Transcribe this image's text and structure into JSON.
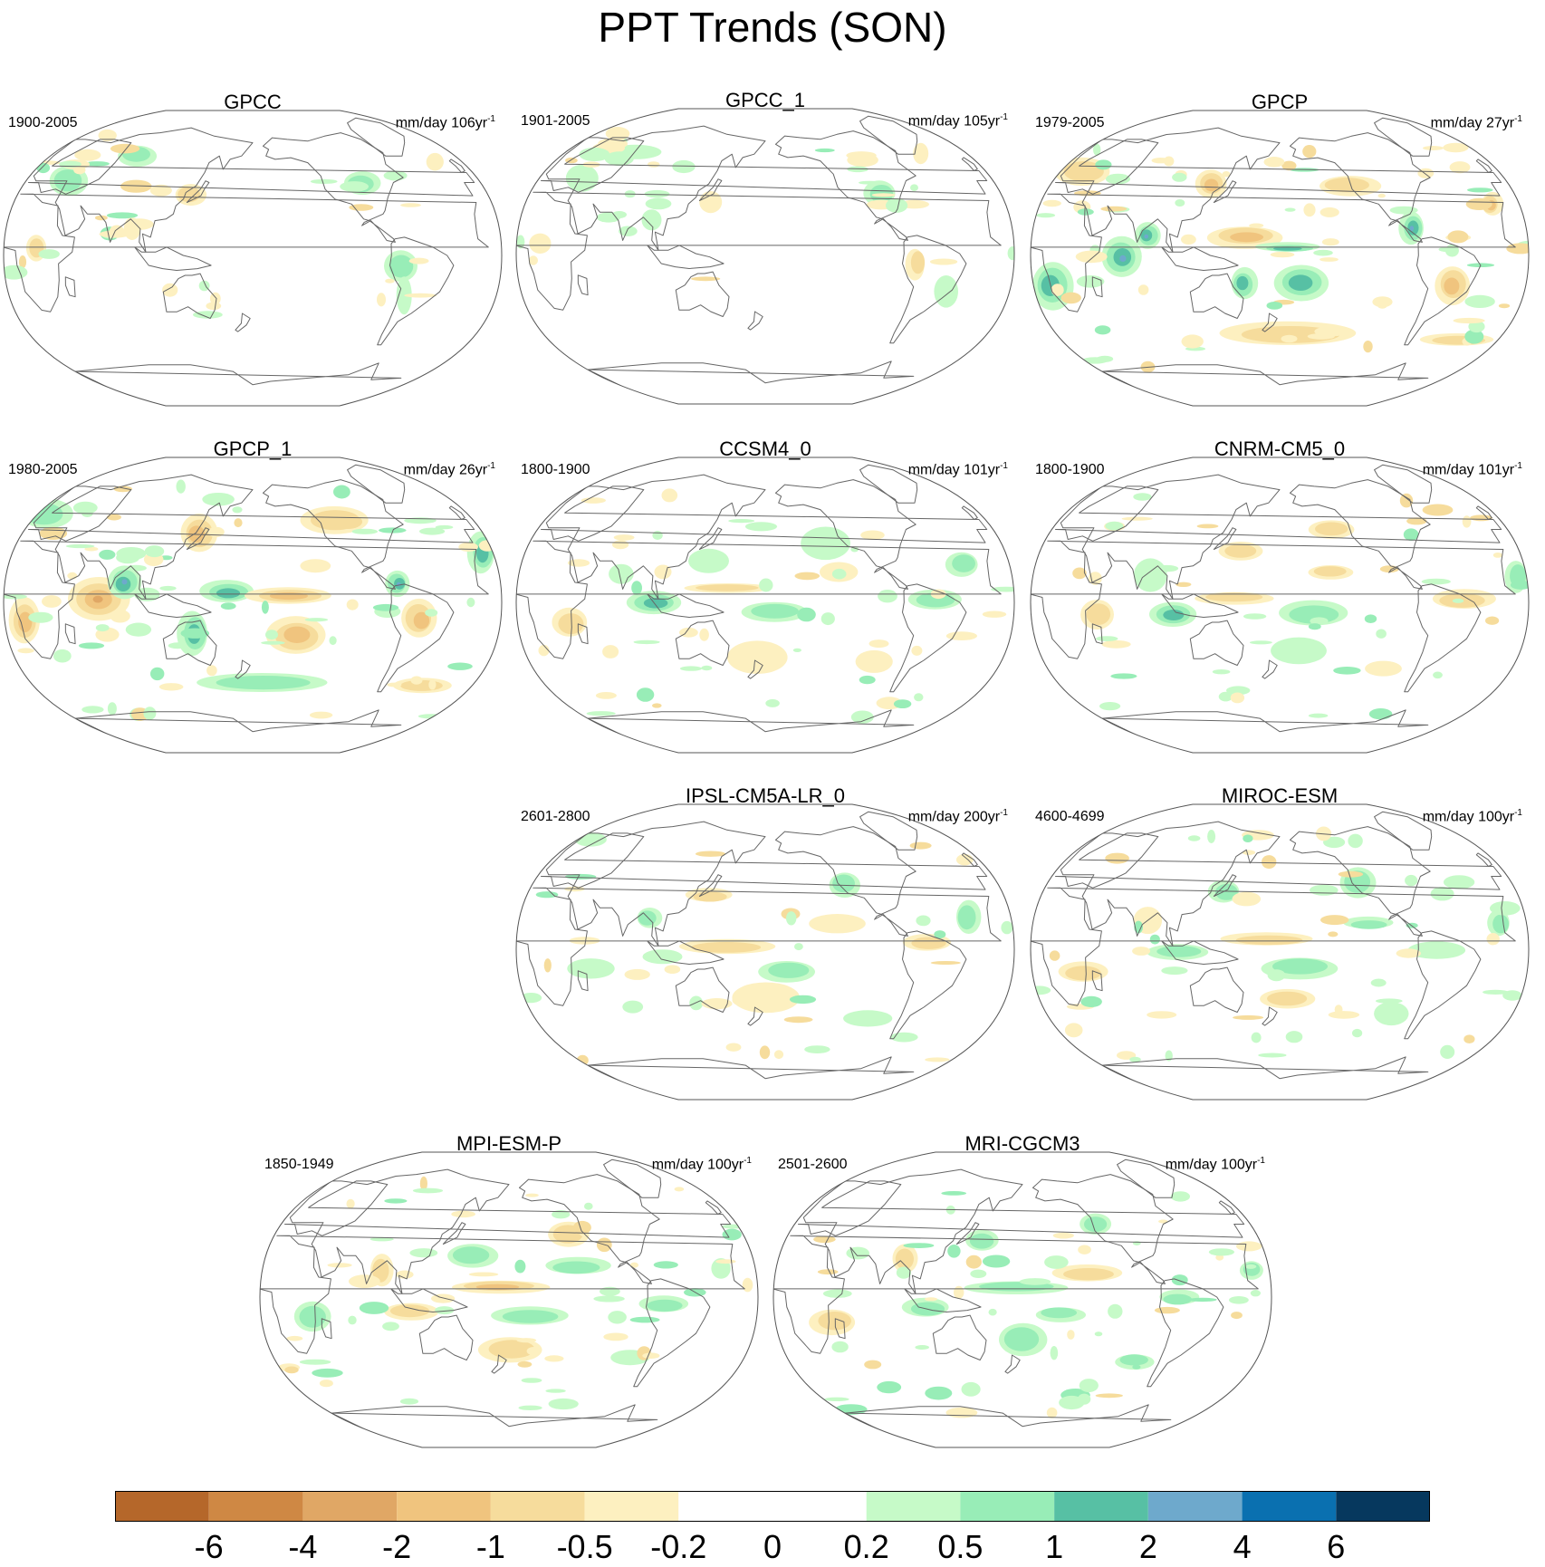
{
  "title": "PPT Trends (SON)",
  "panels": [
    {
      "name": "GPCC",
      "period": "1900-2005",
      "units": "mm/day 106yr",
      "units_sup": "-1",
      "dataset": "obs_gauge",
      "intensity": 0.5
    },
    {
      "name": "GPCC_1",
      "period": "1901-2005",
      "units": "mm/day 105yr",
      "units_sup": "-1",
      "dataset": "obs_gauge",
      "intensity": 0.45
    },
    {
      "name": "GPCP",
      "period": "1979-2005",
      "units": "mm/day 27yr",
      "units_sup": "-1",
      "dataset": "obs_sat",
      "intensity": 1.0
    },
    {
      "name": "GPCP_1",
      "period": "1980-2005",
      "units": "mm/day 26yr",
      "units_sup": "-1",
      "dataset": "obs_sat",
      "intensity": 1.0
    },
    {
      "name": "CCSM4_0",
      "period": "1800-1900",
      "units": "mm/day 101yr",
      "units_sup": "-1",
      "dataset": "model",
      "intensity": 0.6
    },
    {
      "name": "CNRM-CM5_0",
      "period": "1800-1900",
      "units": "mm/day 101yr",
      "units_sup": "-1",
      "dataset": "model",
      "intensity": 0.55
    },
    {
      "name": "IPSL-CM5A-LR_0",
      "period": "2601-2800",
      "units": "mm/day 200yr",
      "units_sup": "-1",
      "dataset": "model",
      "intensity": 0.45
    },
    {
      "name": "MIROC-ESM",
      "period": "4600-4699",
      "units": "mm/day 100yr",
      "units_sup": "-1",
      "dataset": "model",
      "intensity": 0.7
    },
    {
      "name": "MPI-ESM-P",
      "period": "1850-1949",
      "units": "mm/day 100yr",
      "units_sup": "-1",
      "dataset": "model",
      "intensity": 0.75
    },
    {
      "name": "MRI-CGCM3",
      "period": "2501-2600",
      "units": "mm/day 100yr",
      "units_sup": "-1",
      "dataset": "model",
      "intensity": 0.75
    }
  ],
  "colorbar": {
    "levels": [
      "-6",
      "-4",
      "-2",
      "-1",
      "-0.5",
      "-0.2",
      "0",
      "0.2",
      "0.5",
      "1",
      "2",
      "4",
      "6"
    ],
    "colors": [
      "#b5672a",
      "#cf8844",
      "#e0a765",
      "#f0c47e",
      "#f6dc9c",
      "#fdf0c0",
      "#ffffff",
      "#ffffff",
      "#c6fac8",
      "#98edb7",
      "#57c0a4",
      "#6ea9cc",
      "#0a70b0",
      "#06385e"
    ]
  }
}
